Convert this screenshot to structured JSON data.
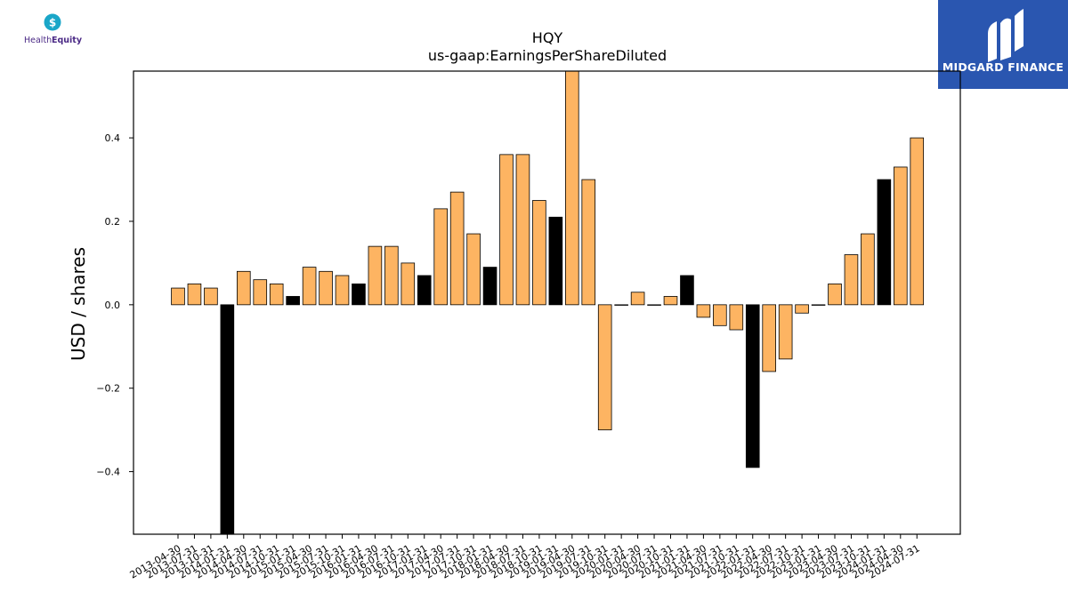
{
  "logos": {
    "left_text_1": "Health",
    "left_text_2": "Equity",
    "right_text": "MIDGARD FINANCE"
  },
  "chart_data": {
    "type": "bar",
    "title": "HQY",
    "subtitle": "us-gaap:EarningsPerShareDiluted",
    "ylabel": "USD / shares",
    "xlabel": "",
    "ylim": [
      -0.55,
      0.56
    ],
    "yticks": [
      -0.4,
      -0.2,
      0.0,
      0.2,
      0.4
    ],
    "ytick_labels": [
      "−0.4",
      "−0.2",
      "0.0",
      "0.2",
      "0.4"
    ],
    "grid": false,
    "colors": {
      "normal": "#fdb462",
      "annual": "#000000",
      "edge": "#000000"
    },
    "categories": [
      "2013-04-30",
      "2013-07-31",
      "2013-10-31",
      "2014-01-31",
      "2014-04-30",
      "2014-07-31",
      "2014-10-31",
      "2015-01-31",
      "2015-04-30",
      "2015-07-31",
      "2015-10-31",
      "2016-01-31",
      "2016-04-30",
      "2016-07-31",
      "2016-10-31",
      "2017-01-31",
      "2017-04-30",
      "2017-07-31",
      "2017-10-31",
      "2018-01-31",
      "2018-04-30",
      "2018-07-31",
      "2018-10-31",
      "2019-01-31",
      "2019-04-30",
      "2019-07-31",
      "2019-10-31",
      "2020-01-31",
      "2020-04-30",
      "2020-07-31",
      "2020-10-31",
      "2021-01-31",
      "2021-04-30",
      "2021-07-31",
      "2021-10-31",
      "2022-01-31",
      "2022-04-30",
      "2022-07-31",
      "2022-10-31",
      "2023-01-31",
      "2023-04-30",
      "2023-07-31",
      "2023-10-31",
      "2024-01-31",
      "2024-04-30",
      "2024-07-31"
    ],
    "values": [
      0.04,
      0.05,
      0.04,
      -0.56,
      0.08,
      0.06,
      0.05,
      0.02,
      0.09,
      0.08,
      0.07,
      0.05,
      0.14,
      0.14,
      0.1,
      0.07,
      0.23,
      0.27,
      0.17,
      0.09,
      0.36,
      0.36,
      0.25,
      0.21,
      0.57,
      0.3,
      -0.3,
      0.0,
      0.03,
      0.0,
      0.02,
      0.07,
      -0.03,
      -0.05,
      -0.06,
      -0.39,
      -0.16,
      -0.13,
      -0.02,
      0.0,
      0.05,
      0.12,
      0.17,
      0.3,
      0.33,
      0.4
    ],
    "annual": [
      false,
      false,
      false,
      true,
      false,
      false,
      false,
      true,
      false,
      false,
      false,
      true,
      false,
      false,
      false,
      true,
      false,
      false,
      false,
      true,
      false,
      false,
      false,
      true,
      false,
      false,
      false,
      false,
      false,
      false,
      false,
      true,
      false,
      false,
      false,
      true,
      false,
      false,
      false,
      false,
      false,
      false,
      false,
      true,
      false,
      false
    ]
  }
}
